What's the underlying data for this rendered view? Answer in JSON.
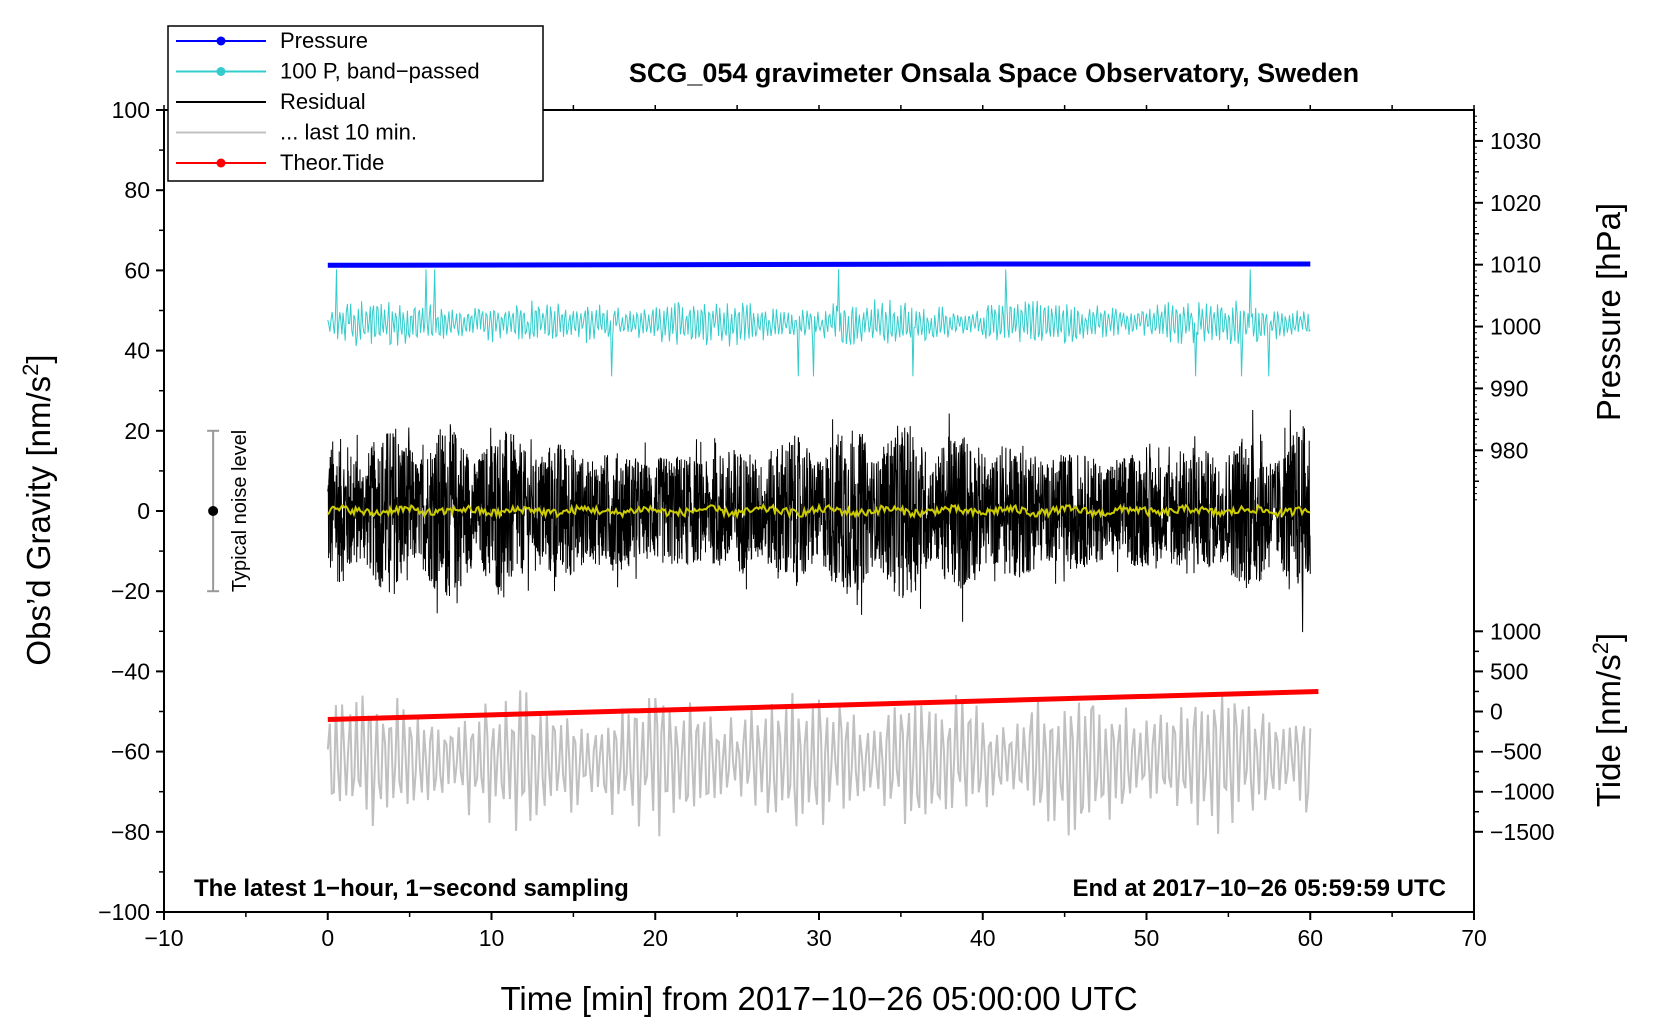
{
  "chart_data": {
    "type": "line",
    "title": "SCG_054 gravimeter Onsala Space Observatory, Sweden",
    "xlabel": "Time [min] from 2017−10−26 05:00:00 UTC",
    "ylabel": "Obs’d Gravity [nm/s",
    "ylabel_sup": "2",
    "ylabel_end": "]",
    "y2label_pressure": "Pressure [hPa]",
    "y2label_tide": "Tide [nm/s",
    "y2label_tide_sup": "2",
    "y2label_tide_end": "]",
    "xlim": [
      -10,
      70
    ],
    "ylim": [
      -100,
      100
    ],
    "x_ticks": [
      -10,
      0,
      10,
      20,
      30,
      40,
      50,
      60,
      70
    ],
    "x_tick_labels": [
      "−10",
      "0",
      "10",
      "20",
      "30",
      "40",
      "50",
      "60",
      "70"
    ],
    "y_ticks": [
      -100,
      -80,
      -60,
      -40,
      -20,
      0,
      20,
      40,
      60,
      80,
      100
    ],
    "y_tick_labels": [
      "−100",
      "−80",
      "−60",
      "−40",
      "−20",
      "0",
      "20",
      "40",
      "60",
      "80",
      "100"
    ],
    "pressure_axis": {
      "ticks": [
        980,
        990,
        1000,
        1010,
        1020,
        1030
      ],
      "tick_labels": [
        "980",
        "990",
        "1000",
        "1010",
        "1020",
        "1030"
      ],
      "gravity_at_1000": 46,
      "gravity_per_hpa": 1.543
    },
    "tide_axis": {
      "ticks": [
        -1500,
        -1000,
        -500,
        0,
        500,
        1000
      ],
      "tick_labels": [
        "−1500",
        "−1000",
        "−500",
        "0",
        "500",
        "1000"
      ],
      "gravity_at_0": -50,
      "gravity_per_unit": 0.02
    },
    "series": [
      {
        "name": "Pressure",
        "color": "#0000ff",
        "x": [
          0,
          20,
          40,
          60
        ],
        "pressure_hpa": [
          1009.9,
          1010.0,
          1010.1,
          1010.1
        ]
      },
      {
        "name": "100 P, band−passed",
        "color": "#33cccc",
        "center_hpa": 1000.6,
        "amplitude_hpa": 3.6
      },
      {
        "name": "Residual",
        "color": "#000000",
        "center": 0,
        "amplitude": 22
      },
      {
        "name": "... last 10 min.",
        "color": "#c0c0c0",
        "center": -62,
        "amplitude": 18
      },
      {
        "name": "Theor.Tide",
        "color": "#ff0000",
        "x": [
          0,
          60.5
        ],
        "tide": [
          -100,
          250
        ]
      },
      {
        "name": "smoothed residual",
        "color": "#cccc00",
        "center": 0,
        "amplitude": 1
      }
    ],
    "noise_bar": {
      "label": "Typical noise level",
      "x": -7,
      "center": 0,
      "low": -20,
      "high": 20
    },
    "annotation_left": "The latest 1−hour, 1−second sampling",
    "annotation_right": "End at 2017−10−26 05:59:59 UTC",
    "legend": [
      {
        "label": "Pressure",
        "color": "#0000ff",
        "marker": true
      },
      {
        "label": "100 P, band−passed",
        "color": "#33cccc",
        "marker": true
      },
      {
        "label": "Residual",
        "color": "#000000",
        "marker": false
      },
      {
        "label": "... last 10 min.",
        "color": "#c0c0c0",
        "marker": false
      },
      {
        "label": "Theor.Tide",
        "color": "#ff0000",
        "marker": true
      }
    ],
    "legend_position": "top-left"
  }
}
